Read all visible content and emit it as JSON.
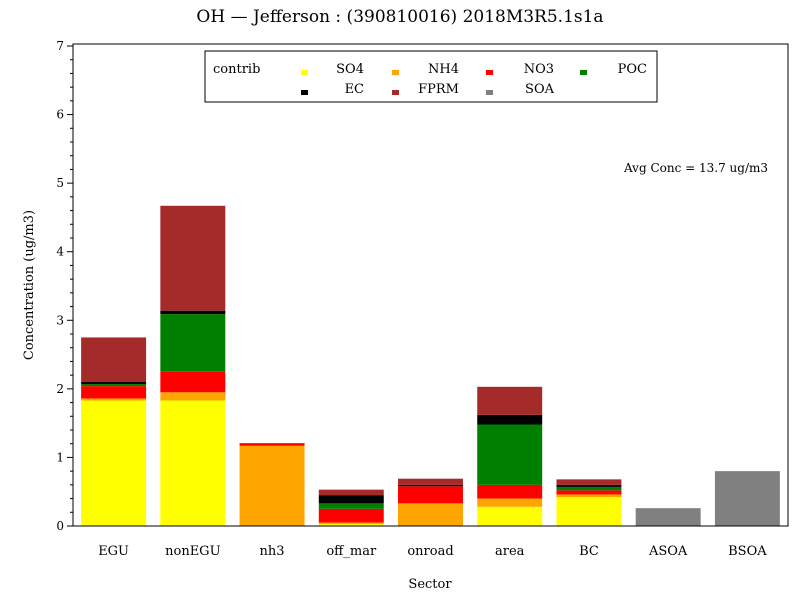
{
  "chart_data": {
    "type": "bar",
    "stacked": true,
    "title": "OH  —  Jefferson : (390810016)  2018M3R5.1s1a",
    "xlabel": "Sector",
    "ylabel": "Concentration  (ug/m3)",
    "ylim": [
      0,
      7
    ],
    "yticks": [
      0,
      1,
      2,
      3,
      4,
      5,
      6,
      7
    ],
    "categories": [
      "EGU",
      "nonEGU",
      "nh3",
      "off_mar",
      "onroad",
      "area",
      "BC",
      "ASOA",
      "BSOA"
    ],
    "legend_title": "contrib",
    "legend_position": "top",
    "annotation": "Avg Conc  =  13.7 ug/m3",
    "series": [
      {
        "name": "SO4",
        "color": "#ffff00",
        "values": [
          1.83,
          1.83,
          0,
          0.03,
          0,
          0.28,
          0.42,
          0,
          0
        ]
      },
      {
        "name": "NH4",
        "color": "#ffa500",
        "values": [
          0.03,
          0.12,
          1.17,
          0.02,
          0.33,
          0.12,
          0.04,
          0,
          0
        ]
      },
      {
        "name": "NO3",
        "color": "#ff0000",
        "values": [
          0.18,
          0.3,
          0.03,
          0.2,
          0.25,
          0.2,
          0.06,
          0,
          0
        ]
      },
      {
        "name": "POC",
        "color": "#008000",
        "values": [
          0.03,
          0.84,
          0,
          0.08,
          0,
          0.88,
          0.05,
          0,
          0
        ]
      },
      {
        "name": "EC",
        "color": "#000000",
        "values": [
          0.03,
          0.05,
          0,
          0.12,
          0.02,
          0.14,
          0.03,
          0,
          0
        ]
      },
      {
        "name": "FPRM",
        "color": "#a52a2a",
        "values": [
          0.65,
          1.53,
          0.01,
          0.08,
          0.09,
          0.41,
          0.08,
          0,
          0
        ]
      },
      {
        "name": "SOA",
        "color": "#808080",
        "values": [
          0,
          0,
          0,
          0,
          0,
          0,
          0,
          0.26,
          0.8
        ]
      }
    ]
  }
}
